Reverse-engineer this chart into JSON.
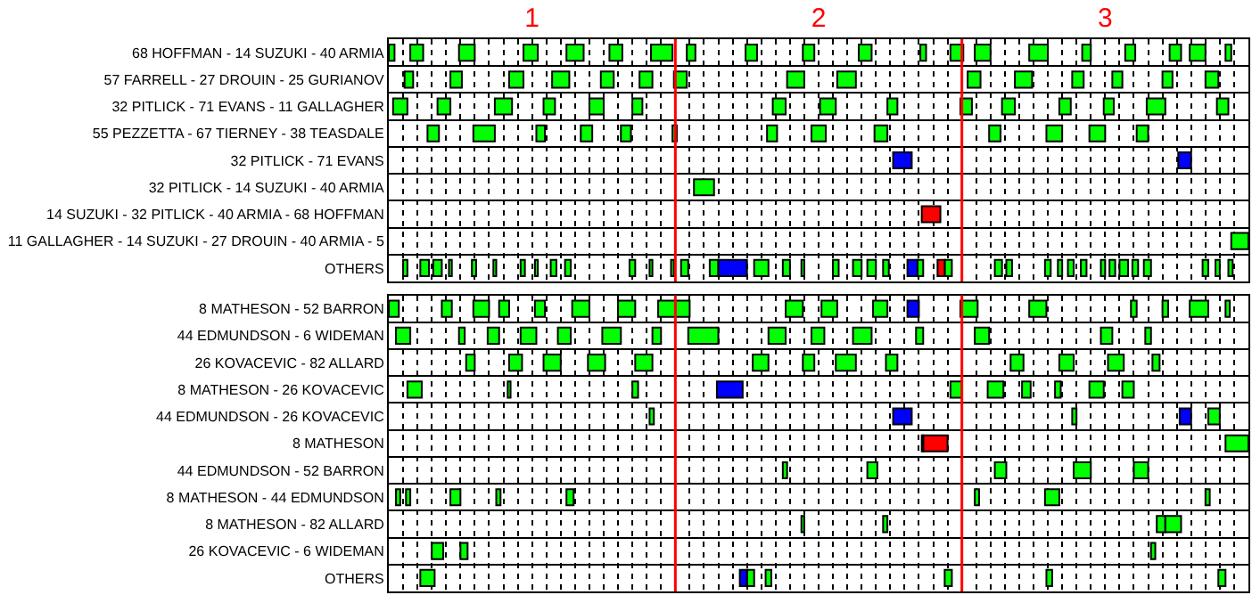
{
  "chart_data": [
    {
      "type": "bar",
      "orientation": "horizontal",
      "grid": true,
      "categories": [
        "68 HOFFMAN - 14 SUZUKI - 40 ARMIA",
        "57 FARRELL - 27 DROUIN - 25 GURIANOV",
        "32 PITLICK - 71 EVANS - 11 GALLAGHER",
        "55 PEZZETTA - 67 TIERNEY - 38 TEASDALE",
        "32 PITLICK - 71 EVANS",
        "32 PITLICK - 14 SUZUKI - 40 ARMIA",
        "14 SUZUKI - 32 PITLICK - 40 ARMIA - 68 HOFFMAN",
        "11 GALLAGHER - 14 SUZUKI - 27 DROUIN - 40 ARMIA - 5",
        "OTHERS"
      ],
      "xlim": [
        0.5,
        3.5
      ],
      "xticks": [
        {
          "value": 0.55,
          "label": null
        },
        {
          "value": 0.6,
          "label": null
        },
        {
          "value": 0.65,
          "label": null
        },
        {
          "value": 0.7,
          "label": null
        },
        {
          "value": 0.75,
          "label": null
        },
        {
          "value": 0.8,
          "label": null
        },
        {
          "value": 0.85,
          "label": null
        },
        {
          "value": 0.9,
          "label": null
        },
        {
          "value": 0.95,
          "label": null
        },
        1,
        {
          "value": 1.05,
          "label": null
        },
        {
          "value": 1.1,
          "label": null
        },
        {
          "value": 1.15,
          "label": null
        },
        {
          "value": 1.2,
          "label": null
        },
        {
          "value": 1.25,
          "label": null
        },
        {
          "value": 1.3,
          "label": null
        },
        {
          "value": 1.35,
          "label": null
        },
        {
          "value": 1.4,
          "label": null
        },
        {
          "value": 1.45,
          "label": null
        },
        {
          "value": 1.55,
          "label": null
        },
        {
          "value": 1.6,
          "label": null
        },
        {
          "value": 1.65,
          "label": null
        },
        {
          "value": 1.7,
          "label": null
        },
        {
          "value": 1.75,
          "label": null
        },
        {
          "value": 1.8,
          "label": null
        },
        {
          "value": 1.85,
          "label": null
        },
        {
          "value": 1.9,
          "label": null
        },
        {
          "value": 1.95,
          "label": null
        },
        2,
        {
          "value": 2.05,
          "label": null
        },
        {
          "value": 2.1,
          "label": null
        },
        {
          "value": 2.15,
          "label": null
        },
        {
          "value": 2.2,
          "label": null
        },
        {
          "value": 2.25,
          "label": null
        },
        {
          "value": 2.3,
          "label": null
        },
        {
          "value": 2.35,
          "label": null
        },
        {
          "value": 2.4,
          "label": null
        },
        {
          "value": 2.45,
          "label": null
        },
        {
          "value": 2.55,
          "label": null
        },
        {
          "value": 2.6,
          "label": null
        },
        {
          "value": 2.65,
          "label": null
        },
        {
          "value": 2.7,
          "label": null
        },
        {
          "value": 2.75,
          "label": null
        },
        {
          "value": 2.8,
          "label": null
        },
        {
          "value": 2.85,
          "label": null
        },
        {
          "value": 2.9,
          "label": null
        },
        {
          "value": 2.95,
          "label": null
        },
        3,
        {
          "value": 3.05,
          "label": null
        },
        {
          "value": 3.1,
          "label": null
        },
        {
          "value": 3.15,
          "label": null
        },
        {
          "value": 3.2,
          "label": null
        },
        {
          "value": 3.25,
          "label": null
        },
        {
          "value": 3.3,
          "label": null
        },
        {
          "value": 3.35,
          "label": null
        },
        {
          "value": 3.4,
          "label": null
        },
        {
          "value": 3.45,
          "label": null
        }
      ],
      "ref_lines": [
        {
          "axis": "x",
          "value": 1.5,
          "color": "#ff0000"
        },
        {
          "axis": "x",
          "value": 2.5,
          "color": "#ff0000"
        }
      ],
      "series": [
        {
          "color": "#00ff00",
          "base": [
            0.5,
            0.555,
            0.515,
            0.635,
            null,
            1.565,
            null,
            3.44,
            0.55
          ],
          "values": [
            0.02,
            0.03,
            0.05,
            0.04,
            null,
            0.07,
            null,
            0.06,
            0.015
          ]
        },
        {
          "color": "#00ff00",
          "base": [
            0.575,
            0.715,
            0.67,
            0.795,
            null,
            null,
            null,
            null,
            0.61
          ],
          "values": [
            0.045,
            0.04,
            0.045,
            0.075,
            null,
            null,
            null,
            null,
            0.03
          ]
        },
        {
          "color": "#00ff00",
          "base": [
            0.745,
            0.92,
            0.87,
            1.015,
            null,
            null,
            null,
            null,
            0.655
          ],
          "values": [
            0.055,
            0.05,
            0.06,
            0.03,
            null,
            null,
            null,
            null,
            0.03
          ]
        },
        {
          "color": "#00ff00",
          "base": [
            0.97,
            1.07,
            1.04,
            1.17,
            null,
            null,
            null,
            null,
            0.71
          ],
          "values": [
            0.05,
            0.06,
            0.04,
            0.04,
            null,
            null,
            null,
            null,
            0.01
          ]
        },
        {
          "color": "#00ff00",
          "base": [
            1.12,
            1.24,
            1.2,
            1.31,
            null,
            null,
            null,
            null,
            0.79
          ],
          "values": [
            0.06,
            0.045,
            0.05,
            0.035,
            null,
            null,
            null,
            null,
            0.015
          ]
        },
        {
          "color": "#00ff00",
          "base": [
            1.27,
            1.375,
            1.35,
            1.49,
            null,
            null,
            null,
            null,
            0.865
          ],
          "values": [
            0.045,
            0.045,
            0.035,
            0.015,
            null,
            null,
            null,
            null,
            0.01
          ]
        },
        {
          "color": "#00ff00",
          "base": [
            1.415,
            1.495,
            1.84,
            1.82,
            null,
            null,
            null,
            null,
            0.96
          ],
          "values": [
            0.075,
            0.045,
            0.045,
            0.035,
            null,
            null,
            null,
            null,
            0.015
          ]
        },
        {
          "color": "#00ff00",
          "base": [
            1.54,
            1.89,
            2.005,
            1.975,
            null,
            null,
            null,
            null,
            1.01
          ],
          "values": [
            0.03,
            0.06,
            0.055,
            0.05,
            null,
            null,
            null,
            null,
            0.01
          ]
        },
        {
          "color": "#00ff00",
          "base": [
            1.745,
            2.065,
            2.24,
            2.195,
            null,
            null,
            null,
            null,
            1.065
          ],
          "values": [
            0.04,
            0.065,
            0.035,
            0.045,
            null,
            null,
            null,
            null,
            0.02
          ]
        },
        {
          "color": "#00ff00",
          "base": [
            1.945,
            2.52,
            2.495,
            2.595,
            null,
            null,
            null,
            null,
            1.115
          ],
          "values": [
            0.04,
            0.045,
            0.04,
            0.04,
            null,
            null,
            null,
            null,
            0.02
          ]
        },
        {
          "color": "#00ff00",
          "base": [
            2.14,
            2.685,
            2.64,
            2.795,
            null,
            null,
            null,
            null,
            1.34
          ],
          "values": [
            0.045,
            0.06,
            0.045,
            0.055,
            null,
            null,
            null,
            null,
            0.02
          ]
        },
        {
          "color": "#00ff00",
          "base": [
            2.355,
            2.885,
            2.84,
            2.945,
            null,
            null,
            null,
            null,
            1.41
          ],
          "values": [
            0.02,
            0.04,
            0.04,
            0.055,
            null,
            null,
            null,
            null,
            0.01
          ]
        },
        {
          "color": "#00ff00",
          "base": [
            2.46,
            3.025,
            2.995,
            3.11,
            null,
            null,
            null,
            null,
            1.485
          ],
          "values": [
            0.045,
            0.035,
            0.035,
            0.04,
            null,
            null,
            null,
            null,
            0.01
          ]
        },
        {
          "color": "#00ff00",
          "base": [
            2.545,
            3.2,
            3.145,
            null,
            null,
            null,
            null,
            null,
            1.52
          ],
          "values": [
            0.055,
            0.035,
            0.065,
            null,
            null,
            null,
            null,
            null,
            0.025
          ]
        },
        {
          "color": "#00ff00",
          "base": [
            2.735,
            3.35,
            3.39,
            null,
            null,
            null,
            null,
            null,
            1.62
          ],
          "values": [
            0.065,
            0.045,
            0.04,
            null,
            null,
            null,
            null,
            null,
            0.03
          ]
        },
        {
          "color": "#00ff00",
          "base": [
            2.92,
            null,
            null,
            null,
            null,
            null,
            null,
            null,
            1.775
          ],
          "values": [
            0.03,
            null,
            null,
            null,
            null,
            null,
            null,
            null,
            0.05
          ]
        },
        {
          "color": "#00ff00",
          "base": [
            3.07,
            null,
            null,
            null,
            null,
            null,
            null,
            null,
            1.875
          ],
          "values": [
            0.035,
            null,
            null,
            null,
            null,
            null,
            null,
            null,
            0.025
          ]
        },
        {
          "color": "#00ff00",
          "base": [
            3.225,
            null,
            null,
            null,
            null,
            null,
            null,
            null,
            1.94
          ],
          "values": [
            0.04,
            null,
            null,
            null,
            null,
            null,
            null,
            null,
            0.01
          ]
        },
        {
          "color": "#00ff00",
          "base": [
            3.295,
            null,
            null,
            null,
            null,
            null,
            null,
            null,
            2.05
          ],
          "values": [
            0.055,
            null,
            null,
            null,
            null,
            null,
            null,
            null,
            0.02
          ]
        },
        {
          "color": "#00ff00",
          "base": [
            3.42,
            null,
            null,
            null,
            null,
            null,
            null,
            null,
            2.12
          ],
          "values": [
            0.02,
            null,
            null,
            null,
            null,
            null,
            null,
            null,
            0.03
          ]
        },
        {
          "color": "#00ff00",
          "base": [
            null,
            null,
            null,
            null,
            null,
            null,
            null,
            null,
            2.17
          ],
          "values": [
            null,
            null,
            null,
            null,
            null,
            null,
            null,
            null,
            0.03
          ]
        },
        {
          "color": "#00ff00",
          "base": [
            null,
            null,
            null,
            null,
            null,
            null,
            null,
            null,
            2.225
          ],
          "values": [
            null,
            null,
            null,
            null,
            null,
            null,
            null,
            null,
            0.02
          ]
        },
        {
          "color": "#00ff00",
          "base": [
            null,
            null,
            null,
            null,
            null,
            null,
            null,
            null,
            2.345
          ],
          "values": [
            null,
            null,
            null,
            null,
            null,
            null,
            null,
            null,
            0.02
          ]
        },
        {
          "color": "#00ff00",
          "base": [
            null,
            null,
            null,
            null,
            null,
            null,
            null,
            null,
            2.44
          ],
          "values": [
            null,
            null,
            null,
            null,
            null,
            null,
            null,
            null,
            0.025
          ]
        },
        {
          "color": "#00ff00",
          "base": [
            null,
            null,
            null,
            null,
            null,
            null,
            null,
            null,
            2.615
          ],
          "values": [
            null,
            null,
            null,
            null,
            null,
            null,
            null,
            null,
            0.025
          ]
        },
        {
          "color": "#00ff00",
          "base": [
            null,
            null,
            null,
            null,
            null,
            null,
            null,
            null,
            2.655
          ],
          "values": [
            null,
            null,
            null,
            null,
            null,
            null,
            null,
            null,
            0.02
          ]
        },
        {
          "color": "#00ff00",
          "base": [
            null,
            null,
            null,
            null,
            null,
            null,
            null,
            null,
            2.79
          ],
          "values": [
            null,
            null,
            null,
            null,
            null,
            null,
            null,
            null,
            0.02
          ]
        },
        {
          "color": "#00ff00",
          "base": [
            null,
            null,
            null,
            null,
            null,
            null,
            null,
            null,
            2.835
          ],
          "values": [
            null,
            null,
            null,
            null,
            null,
            null,
            null,
            null,
            0.015
          ]
        },
        {
          "color": "#00ff00",
          "base": [
            null,
            null,
            null,
            null,
            null,
            null,
            null,
            null,
            2.87
          ],
          "values": [
            null,
            null,
            null,
            null,
            null,
            null,
            null,
            null,
            0.02
          ]
        },
        {
          "color": "#00ff00",
          "base": [
            null,
            null,
            null,
            null,
            null,
            null,
            null,
            null,
            2.915
          ],
          "values": [
            null,
            null,
            null,
            null,
            null,
            null,
            null,
            null,
            0.02
          ]
        },
        {
          "color": "#00ff00",
          "base": [
            null,
            null,
            null,
            null,
            null,
            null,
            null,
            null,
            2.985
          ],
          "values": [
            null,
            null,
            null,
            null,
            null,
            null,
            null,
            null,
            0.015
          ]
        },
        {
          "color": "#00ff00",
          "base": [
            null,
            null,
            null,
            null,
            null,
            null,
            null,
            null,
            3.015
          ],
          "values": [
            null,
            null,
            null,
            null,
            null,
            null,
            null,
            null,
            0.02
          ]
        },
        {
          "color": "#00ff00",
          "base": [
            null,
            null,
            null,
            null,
            null,
            null,
            null,
            null,
            3.05
          ],
          "values": [
            null,
            null,
            null,
            null,
            null,
            null,
            null,
            null,
            0.03
          ]
        },
        {
          "color": "#00ff00",
          "base": [
            null,
            null,
            null,
            null,
            null,
            null,
            null,
            null,
            3.095
          ],
          "values": [
            null,
            null,
            null,
            null,
            null,
            null,
            null,
            null,
            0.02
          ]
        },
        {
          "color": "#00ff00",
          "base": [
            null,
            null,
            null,
            null,
            null,
            null,
            null,
            null,
            3.135
          ],
          "values": [
            null,
            null,
            null,
            null,
            null,
            null,
            null,
            null,
            0.025
          ]
        },
        {
          "color": "#00ff00",
          "base": [
            null,
            null,
            null,
            null,
            null,
            null,
            null,
            null,
            3.34
          ],
          "values": [
            null,
            null,
            null,
            null,
            null,
            null,
            null,
            null,
            0.02
          ]
        },
        {
          "color": "#00ff00",
          "base": [
            null,
            null,
            null,
            null,
            null,
            null,
            null,
            null,
            3.385
          ],
          "values": [
            null,
            null,
            null,
            null,
            null,
            null,
            null,
            null,
            0.015
          ]
        },
        {
          "color": "#00ff00",
          "base": [
            null,
            null,
            null,
            null,
            null,
            null,
            null,
            null,
            3.43
          ],
          "values": [
            null,
            null,
            null,
            null,
            null,
            null,
            null,
            null,
            0.015
          ]
        },
        {
          "color": "#0000ff",
          "base": [
            null,
            null,
            null,
            null,
            2.26,
            null,
            null,
            null,
            1.65
          ],
          "values": [
            null,
            null,
            null,
            null,
            0.065,
            null,
            null,
            null,
            0.1
          ]
        },
        {
          "color": "#0000ff",
          "base": [
            null,
            null,
            null,
            null,
            3.255,
            null,
            null,
            null,
            2.31
          ],
          "values": [
            null,
            null,
            null,
            null,
            0.045,
            null,
            null,
            null,
            0.035
          ]
        },
        {
          "color": "#ff0000",
          "base": [
            null,
            null,
            null,
            null,
            null,
            null,
            2.36,
            null,
            2.415
          ],
          "values": [
            null,
            null,
            null,
            null,
            null,
            null,
            0.065,
            null,
            0.025
          ]
        }
      ]
    },
    {
      "type": "bar",
      "orientation": "horizontal",
      "grid": true,
      "tick_labels": "y",
      "categories": [
        "8 MATHESON - 52 BARRON",
        "44 EDMUNDSON - 6 WIDEMAN",
        "26 KOVACEVIC - 82 ALLARD",
        "8 MATHESON - 26 KOVACEVIC",
        "44 EDMUNDSON - 26 KOVACEVIC",
        "8 MATHESON",
        "44 EDMUNDSON - 52 BARRON",
        "8 MATHESON - 44 EDMUNDSON",
        "8 MATHESON - 82 ALLARD",
        "26 KOVACEVIC - 6 WIDEMAN",
        "OTHERS"
      ],
      "xlim": [
        0.5,
        3.5
      ],
      "xticks": [
        {
          "value": 0.55,
          "label": null
        },
        {
          "value": 0.6,
          "label": null
        },
        {
          "value": 0.65,
          "label": null
        },
        {
          "value": 0.7,
          "label": null
        },
        {
          "value": 0.75,
          "label": null
        },
        {
          "value": 0.8,
          "label": null
        },
        {
          "value": 0.85,
          "label": null
        },
        {
          "value": 0.9,
          "label": null
        },
        {
          "value": 0.95,
          "label": null
        },
        1,
        {
          "value": 1.05,
          "label": null
        },
        {
          "value": 1.1,
          "label": null
        },
        {
          "value": 1.15,
          "label": null
        },
        {
          "value": 1.2,
          "label": null
        },
        {
          "value": 1.25,
          "label": null
        },
        {
          "value": 1.3,
          "label": null
        },
        {
          "value": 1.35,
          "label": null
        },
        {
          "value": 1.4,
          "label": null
        },
        {
          "value": 1.45,
          "label": null
        },
        {
          "value": 1.55,
          "label": null
        },
        {
          "value": 1.6,
          "label": null
        },
        {
          "value": 1.65,
          "label": null
        },
        {
          "value": 1.7,
          "label": null
        },
        {
          "value": 1.75,
          "label": null
        },
        {
          "value": 1.8,
          "label": null
        },
        {
          "value": 1.85,
          "label": null
        },
        {
          "value": 1.9,
          "label": null
        },
        {
          "value": 1.95,
          "label": null
        },
        2,
        {
          "value": 2.05,
          "label": null
        },
        {
          "value": 2.1,
          "label": null
        },
        {
          "value": 2.15,
          "label": null
        },
        {
          "value": 2.2,
          "label": null
        },
        {
          "value": 2.25,
          "label": null
        },
        {
          "value": 2.3,
          "label": null
        },
        {
          "value": 2.35,
          "label": null
        },
        {
          "value": 2.4,
          "label": null
        },
        {
          "value": 2.45,
          "label": null
        },
        {
          "value": 2.55,
          "label": null
        },
        {
          "value": 2.6,
          "label": null
        },
        {
          "value": 2.65,
          "label": null
        },
        {
          "value": 2.7,
          "label": null
        },
        {
          "value": 2.75,
          "label": null
        },
        {
          "value": 2.8,
          "label": null
        },
        {
          "value": 2.85,
          "label": null
        },
        {
          "value": 2.9,
          "label": null
        },
        {
          "value": 2.95,
          "label": null
        },
        3,
        {
          "value": 3.05,
          "label": null
        },
        {
          "value": 3.1,
          "label": null
        },
        {
          "value": 3.15,
          "label": null
        },
        {
          "value": 3.2,
          "label": null
        },
        {
          "value": 3.25,
          "label": null
        },
        {
          "value": 3.3,
          "label": null
        },
        {
          "value": 3.35,
          "label": null
        },
        {
          "value": 3.4,
          "label": null
        },
        {
          "value": 3.45,
          "label": null
        }
      ],
      "ref_lines": [
        {
          "axis": "x",
          "value": 1.5,
          "color": "#ff0000"
        },
        {
          "axis": "x",
          "value": 2.5,
          "color": "#ff0000"
        }
      ],
      "series": [
        {
          "color": "#ff0000",
          "base": [
            null,
            null,
            null,
            null,
            null,
            2.365,
            null,
            null,
            null,
            null,
            null
          ],
          "values": [
            null,
            null,
            null,
            null,
            null,
            0.085,
            null,
            null,
            null,
            null,
            null
          ]
        },
        {
          "color": "#00ff00",
          "base": [
            0.5,
            0.525,
            0.77,
            0.565,
            1.41,
            2.36,
            1.875,
            0.525,
            1.94,
            0.65,
            0.61
          ],
          "values": [
            0.035,
            0.05,
            0.03,
            0.05,
            0.015,
            0.005,
            0.015,
            0.015,
            0.01,
            0.04,
            0.05
          ]
        },
        {
          "color": "#00ff00",
          "base": [
            0.685,
            0.745,
            0.92,
            0.915,
            2.885,
            3.42,
            2.17,
            0.56,
            2.225,
            0.75,
            1.75
          ],
          "values": [
            0.035,
            0.02,
            0.045,
            0.01,
            0.015,
            0.08,
            0.035,
            0.015,
            0.015,
            0.025,
            0.025
          ]
        },
        {
          "color": "#00ff00",
          "base": [
            0.795,
            0.845,
            1.04,
            1.35,
            3.36,
            null,
            2.615,
            0.715,
            3.18,
            3.16,
            1.815
          ],
          "values": [
            0.055,
            0.04,
            0.06,
            0.02,
            0.04,
            null,
            0.04,
            0.035,
            0.03,
            0.015,
            0.02
          ]
        },
        {
          "color": "#00ff00",
          "base": [
            0.885,
            0.96,
            1.195,
            2.46,
            null,
            null,
            2.89,
            0.875,
            3.21,
            null,
            2.44
          ],
          "values": [
            0.035,
            0.055,
            0.06,
            0.04,
            null,
            null,
            0.06,
            0.015,
            0.055,
            null,
            0.025
          ]
        },
        {
          "color": "#00ff00",
          "base": [
            1.01,
            1.09,
            1.36,
            2.59,
            null,
            null,
            3.1,
            1.12,
            null,
            null,
            2.795
          ],
          "values": [
            0.035,
            0.045,
            0.06,
            0.055,
            null,
            null,
            0.05,
            0.025,
            null,
            null,
            0.02
          ]
        },
        {
          "color": "#00ff00",
          "base": [
            1.14,
            1.245,
            1.77,
            2.71,
            null,
            null,
            null,
            2.545,
            null,
            null,
            3.395
          ],
          "values": [
            0.06,
            0.065,
            0.055,
            0.03,
            null,
            null,
            null,
            0.015,
            null,
            null,
            0.025
          ]
        },
        {
          "color": "#00ff00",
          "base": [
            1.3,
            1.42,
            1.945,
            2.825,
            null,
            null,
            null,
            2.79,
            null,
            null,
            null
          ],
          "values": [
            0.06,
            0.03,
            0.04,
            0.02,
            null,
            null,
            null,
            0.05,
            null,
            null,
            null
          ]
        },
        {
          "color": "#00ff00",
          "base": [
            1.44,
            1.545,
            2.06,
            2.945,
            null,
            null,
            null,
            3.35,
            null,
            null,
            null
          ],
          "values": [
            0.11,
            0.105,
            0.07,
            0.05,
            null,
            null,
            null,
            0.015,
            null,
            null,
            null
          ]
        },
        {
          "color": "#00ff00",
          "base": [
            1.885,
            1.825,
            2.235,
            3.06,
            null,
            null,
            null,
            null,
            null,
            null,
            null
          ],
          "values": [
            0.06,
            0.06,
            0.04,
            0.04,
            null,
            null,
            null,
            null,
            null,
            null,
            null
          ]
        },
        {
          "color": "#00ff00",
          "base": [
            2.01,
            1.975,
            2.67,
            null,
            null,
            null,
            null,
            null,
            null,
            null,
            null
          ],
          "values": [
            0.055,
            0.045,
            0.045,
            null,
            null,
            null,
            null,
            null,
            null,
            null,
            null
          ]
        },
        {
          "color": "#00ff00",
          "base": [
            2.19,
            2.12,
            2.84,
            null,
            null,
            null,
            null,
            null,
            null,
            null,
            null
          ],
          "values": [
            0.05,
            0.065,
            0.05,
            null,
            null,
            null,
            null,
            null,
            null,
            null,
            null
          ]
        },
        {
          "color": "#00ff00",
          "base": [
            2.495,
            2.34,
            3.01,
            null,
            null,
            null,
            null,
            null,
            null,
            null,
            null
          ],
          "values": [
            0.06,
            0.025,
            0.055,
            null,
            null,
            null,
            null,
            null,
            null,
            null,
            null
          ]
        },
        {
          "color": "#00ff00",
          "base": [
            2.735,
            2.545,
            3.165,
            null,
            null,
            null,
            null,
            null,
            null,
            null,
            null
          ],
          "values": [
            0.06,
            0.05,
            0.025,
            null,
            null,
            null,
            null,
            null,
            null,
            null,
            null
          ]
        },
        {
          "color": "#00ff00",
          "base": [
            3.09,
            2.985,
            null,
            null,
            null,
            null,
            null,
            null,
            null,
            null,
            null
          ],
          "values": [
            0.02,
            0.04,
            null,
            null,
            null,
            null,
            null,
            null,
            null,
            null,
            null
          ]
        },
        {
          "color": "#00ff00",
          "base": [
            3.2,
            3.14,
            null,
            null,
            null,
            null,
            null,
            null,
            null,
            null,
            null
          ],
          "values": [
            0.02,
            0.02,
            null,
            null,
            null,
            null,
            null,
            null,
            null,
            null,
            null
          ]
        },
        {
          "color": "#00ff00",
          "base": [
            3.295,
            null,
            null,
            null,
            null,
            null,
            null,
            null,
            null,
            null,
            null
          ],
          "values": [
            0.065,
            null,
            null,
            null,
            null,
            null,
            null,
            null,
            null,
            null,
            null
          ]
        },
        {
          "color": "#00ff00",
          "base": [
            3.42,
            null,
            null,
            null,
            null,
            null,
            null,
            null,
            null,
            null,
            null
          ],
          "values": [
            0.015,
            null,
            null,
            null,
            null,
            null,
            null,
            null,
            null,
            null,
            null
          ]
        },
        {
          "color": "#0000ff",
          "base": [
            2.31,
            null,
            null,
            1.645,
            2.26,
            null,
            null,
            null,
            null,
            null,
            1.725
          ],
          "values": [
            0.04,
            null,
            null,
            0.09,
            0.065,
            null,
            null,
            null,
            null,
            null,
            0.025
          ]
        },
        {
          "color": "#0000ff",
          "base": [
            null,
            null,
            null,
            null,
            3.26,
            null,
            null,
            null,
            null,
            null,
            null
          ],
          "values": [
            null,
            null,
            null,
            null,
            0.04,
            null,
            null,
            null,
            null,
            null,
            null
          ]
        }
      ]
    }
  ]
}
